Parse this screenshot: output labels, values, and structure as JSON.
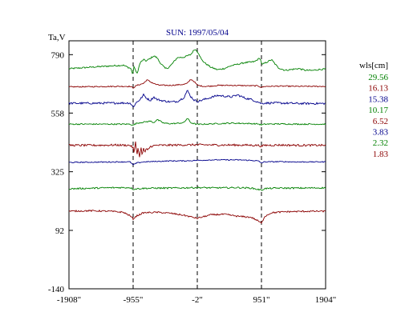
{
  "chart_data": {
    "type": "line",
    "title": "SUN: 1997/05/04",
    "ylabel": "Ta,V",
    "xlabel": "",
    "xlim": [
      -1908,
      1904
    ],
    "ylim": [
      -140,
      845
    ],
    "x_ticks": [
      -1908,
      -955,
      -2,
      951,
      1904
    ],
    "x_tick_labels": [
      "-1908\"",
      "-955\"",
      "-2\"",
      "951\"",
      "1904\""
    ],
    "y_ticks": [
      -140,
      92,
      325,
      558,
      790
    ],
    "y_tick_labels": [
      "-140",
      "92",
      "325",
      "558",
      "790"
    ],
    "vlines": [
      -955,
      -2,
      951
    ],
    "grid": false,
    "legend": {
      "title": "wls[cm]",
      "placement": "right"
    },
    "series": [
      {
        "name": "29.56",
        "color": "#008000",
        "baseline": 740,
        "noise": 3,
        "shape": "mound",
        "x": [
          -1908,
          -1600,
          -1300,
          -1100,
          -990,
          -960,
          -940,
          -900,
          -850,
          -800,
          -760,
          -700,
          -650,
          -600,
          -560,
          -520,
          -480,
          -430,
          -380,
          -300,
          -200,
          -100,
          -40,
          -10,
          20,
          60,
          120,
          200,
          300,
          400,
          500,
          600,
          700,
          780,
          850,
          900,
          930,
          960,
          1000,
          1100,
          1200,
          1300,
          1400,
          1500,
          1600,
          1700,
          1800,
          1904
        ],
        "values": [
          734,
          740,
          745,
          748,
          735,
          712,
          745,
          712,
          758,
          770,
          765,
          775,
          785,
          778,
          760,
          748,
          735,
          738,
          752,
          778,
          780,
          790,
          812,
          805,
          795,
          770,
          755,
          740,
          730,
          735,
          746,
          752,
          758,
          760,
          762,
          772,
          776,
          750,
          756,
          770,
          738,
          728,
          731,
          735,
          728,
          727,
          731,
          733
        ]
      },
      {
        "name": "16.13",
        "color": "#8b0000",
        "baseline": 665,
        "noise": 2.2,
        "shape": "mound",
        "x": [
          -1908,
          -1500,
          -1200,
          -1000,
          -955,
          -900,
          -850,
          -800,
          -750,
          -700,
          -600,
          -500,
          -400,
          -300,
          -200,
          -150,
          -100,
          -50,
          0,
          100,
          200,
          300,
          500,
          700,
          900,
          951,
          1000,
          1200,
          1500,
          1904
        ],
        "values": [
          662,
          663,
          664,
          664,
          658,
          668,
          672,
          676,
          690,
          682,
          670,
          668,
          668,
          670,
          672,
          676,
          692,
          684,
          668,
          664,
          665,
          668,
          668,
          667,
          666,
          660,
          664,
          665,
          664,
          664
        ]
      },
      {
        "name": "15.38",
        "color": "#00008b",
        "baseline": 600,
        "noise": 4,
        "shape": "bumps",
        "x": [
          -1908,
          -1500,
          -1200,
          -1000,
          -955,
          -900,
          -850,
          -800,
          -750,
          -700,
          -650,
          -600,
          -500,
          -400,
          -300,
          -250,
          -200,
          -150,
          -100,
          -50,
          0,
          100,
          200,
          300,
          400,
          500,
          600,
          700,
          800,
          900,
          951,
          1000,
          1200,
          1500,
          1904
        ],
        "values": [
          597,
          597,
          598,
          598,
          582,
          602,
          612,
          630,
          616,
          608,
          622,
          612,
          606,
          602,
          604,
          612,
          620,
          648,
          624,
          610,
          604,
          612,
          620,
          628,
          625,
          622,
          630,
          618,
          612,
          602,
          596,
          598,
          598,
          596,
          596
        ]
      },
      {
        "name": "10.17",
        "color": "#008000",
        "baseline": 515,
        "noise": 2.5,
        "shape": "bumps",
        "x": [
          -1908,
          -1500,
          -1200,
          -1000,
          -955,
          -900,
          -800,
          -700,
          -650,
          -600,
          -500,
          -400,
          -300,
          -200,
          -150,
          -100,
          -50,
          0,
          100,
          300,
          500,
          700,
          900,
          951,
          1000,
          1200,
          1500,
          1904
        ],
        "values": [
          514,
          514,
          514,
          514,
          510,
          518,
          522,
          526,
          520,
          532,
          518,
          516,
          517,
          520,
          538,
          520,
          516,
          513,
          514,
          516,
          518,
          517,
          515,
          511,
          514,
          515,
          514,
          514
        ]
      },
      {
        "name": "6.52",
        "color": "#8b0000",
        "baseline": 430,
        "noise": 4,
        "shape": "spikes",
        "x": [
          -1908,
          -1500,
          -1200,
          -1000,
          -955,
          -940,
          -920,
          -900,
          -880,
          -860,
          -840,
          -820,
          -800,
          -780,
          -760,
          -740,
          -700,
          -650,
          -600,
          -500,
          -300,
          0,
          300,
          600,
          900,
          951,
          1000,
          1200,
          1500,
          1904
        ],
        "values": [
          430,
          430,
          431,
          430,
          420,
          395,
          448,
          392,
          422,
          380,
          428,
          385,
          420,
          400,
          416,
          410,
          425,
          428,
          430,
          430,
          431,
          432,
          431,
          431,
          430,
          426,
          430,
          431,
          430,
          430
        ]
      },
      {
        "name": "3.83",
        "color": "#00008b",
        "baseline": 365,
        "noise": 2,
        "shape": "flat",
        "x": [
          -1908,
          -1500,
          -1200,
          -1000,
          -955,
          -900,
          -800,
          -600,
          -400,
          -200,
          0,
          200,
          400,
          600,
          800,
          900,
          951,
          1000,
          1200,
          1500,
          1904
        ],
        "values": [
          362,
          363,
          364,
          364,
          352,
          360,
          364,
          366,
          368,
          368,
          370,
          372,
          372,
          372,
          370,
          368,
          360,
          364,
          365,
          364,
          364
        ]
      },
      {
        "name": "2.32",
        "color": "#008000",
        "baseline": 260,
        "noise": 3,
        "shape": "flat",
        "x": [
          -1908,
          -1500,
          -1200,
          -1000,
          -955,
          -800,
          -600,
          -400,
          -200,
          0,
          200,
          400,
          600,
          800,
          951,
          1000,
          1200,
          1500,
          1904
        ],
        "values": [
          257,
          260,
          262,
          262,
          256,
          259,
          260,
          260,
          261,
          262,
          261,
          261,
          262,
          260,
          252,
          258,
          260,
          260,
          261
        ]
      },
      {
        "name": "1.83",
        "color": "#8b0000",
        "baseline": 165,
        "noise": 3,
        "shape": "dips",
        "x": [
          -1908,
          -1600,
          -1300,
          -1100,
          -1000,
          -955,
          -900,
          -800,
          -600,
          -400,
          -200,
          -2,
          200,
          400,
          600,
          800,
          900,
          951,
          1000,
          1100,
          1300,
          1500,
          1700,
          1904
        ],
        "values": [
          168,
          170,
          168,
          164,
          150,
          138,
          150,
          162,
          164,
          160,
          152,
          140,
          154,
          156,
          148,
          144,
          130,
          120,
          148,
          162,
          166,
          167,
          168,
          168
        ]
      }
    ]
  }
}
